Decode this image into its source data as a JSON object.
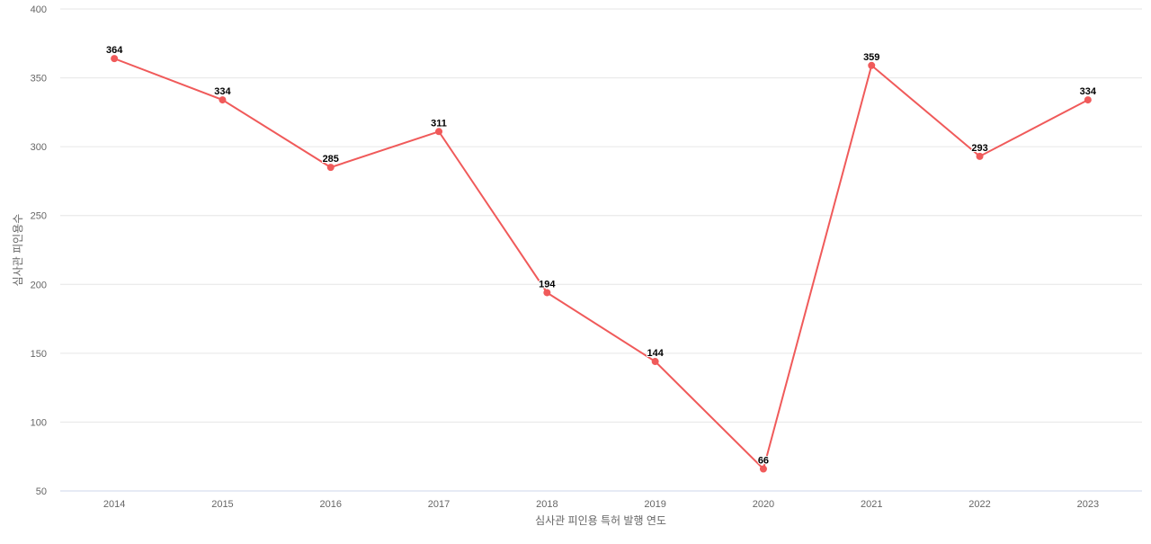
{
  "chart_data": {
    "type": "line",
    "title": "",
    "xlabel": "심사관 피인용 특허 발행 연도",
    "ylabel": "심사관 피인용수",
    "categories": [
      "2014",
      "2015",
      "2016",
      "2017",
      "2018",
      "2019",
      "2020",
      "2021",
      "2022",
      "2023"
    ],
    "series": [
      {
        "values": [
          364,
          334,
          285,
          311,
          194,
          144,
          66,
          359,
          293,
          334
        ],
        "color": "#f05a5a"
      }
    ],
    "ylim": [
      50,
      400
    ],
    "yticks": [
      50,
      100,
      150,
      200,
      250,
      300,
      350,
      400
    ],
    "grid": true,
    "data_labels": true,
    "legend": "none"
  }
}
